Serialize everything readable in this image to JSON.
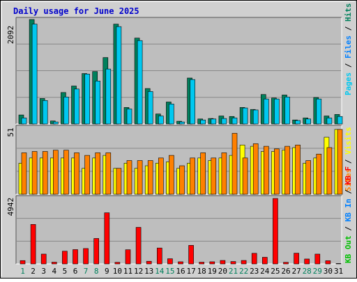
{
  "title": "Daily usage for June 2025",
  "colors": {
    "background": "#D0D0D0",
    "plot_bg": "#BEBEBE",
    "title": "#0000CC",
    "hits": "#00805C",
    "files": "#00C8F0",
    "pages": "#00E0E0",
    "visits": "#FFFF00",
    "sites": "#FF8000",
    "kb_f": "#FF0000",
    "kb_in": "#0080FF",
    "kb_out": "#00C000",
    "weekend": "#00805C",
    "weekday": "#000000"
  },
  "chart_data": [
    {
      "type": "bar",
      "name": "hits-files-pages",
      "ymax_label": "2092",
      "ylim": [
        0,
        2092
      ],
      "legend": [
        {
          "text": "Hits",
          "color": "#00805C"
        },
        {
          "text": "Files",
          "color": "#0080FF"
        },
        {
          "text": "Pages",
          "color": "#00C8F0"
        }
      ],
      "series": [
        {
          "name": "Hits",
          "values": [
            180,
            2092,
            510,
            60,
            630,
            760,
            1010,
            1050,
            1330,
            2000,
            330,
            1720,
            710,
            200,
            440,
            55,
            920,
            100,
            110,
            160,
            150,
            330,
            290,
            590,
            520,
            580,
            80,
            120,
            530,
            160,
            190
          ]
        },
        {
          "name": "Files",
          "values": [
            120,
            2000,
            470,
            40,
            540,
            700,
            1000,
            860,
            1100,
            1950,
            300,
            1670,
            650,
            160,
            400,
            40,
            890,
            80,
            100,
            110,
            120,
            320,
            280,
            500,
            500,
            540,
            70,
            100,
            500,
            120,
            150
          ]
        }
      ]
    },
    {
      "type": "bar",
      "name": "visits-sites",
      "ymax_label": "51",
      "ylim": [
        0,
        51
      ],
      "legend": [
        {
          "text": "Visits",
          "color": "#FFFF00"
        },
        {
          "text": "Sites",
          "color": "#FF8000"
        }
      ],
      "series": [
        {
          "name": "Visits",
          "values": [
            24,
            28,
            28,
            28,
            28,
            28,
            20,
            28,
            30,
            20,
            24,
            20,
            22,
            24,
            25,
            20,
            24,
            28,
            26,
            28,
            30,
            38,
            37,
            33,
            33,
            34,
            36,
            24,
            28,
            44,
            50
          ]
        },
        {
          "name": "Sites",
          "values": [
            32,
            33,
            33,
            34,
            34,
            32,
            30,
            32,
            32,
            20,
            26,
            26,
            26,
            28,
            30,
            22,
            28,
            32,
            28,
            32,
            47,
            28,
            39,
            37,
            35,
            37,
            38,
            26,
            31,
            36,
            50
          ]
        }
      ]
    },
    {
      "type": "bar",
      "name": "kbytes",
      "ymax_label": "4942",
      "ylim": [
        0,
        4942
      ],
      "legend": [
        {
          "text": "KB F",
          "color": "#FF0000"
        },
        {
          "text": "KB In",
          "color": "#0080FF"
        },
        {
          "text": "KB Out",
          "color": "#00C000"
        }
      ],
      "series": [
        {
          "name": "KB F",
          "values": [
            250,
            2980,
            740,
            130,
            960,
            1080,
            1160,
            1920,
            3860,
            120,
            1070,
            2760,
            200,
            1200,
            390,
            160,
            1400,
            130,
            160,
            260,
            180,
            260,
            800,
            500,
            4942,
            120,
            810,
            370,
            740,
            240,
            30
          ]
        }
      ]
    }
  ],
  "x_axis": {
    "days": [
      "1",
      "2",
      "3",
      "4",
      "5",
      "6",
      "7",
      "8",
      "9",
      "10",
      "11",
      "12",
      "13",
      "14",
      "15",
      "16",
      "17",
      "18",
      "19",
      "20",
      "21",
      "22",
      "23",
      "24",
      "25",
      "26",
      "27",
      "28",
      "29",
      "30",
      "31"
    ],
    "weekend_days": [
      1,
      7,
      8,
      14,
      15,
      21,
      22,
      28,
      29
    ]
  }
}
